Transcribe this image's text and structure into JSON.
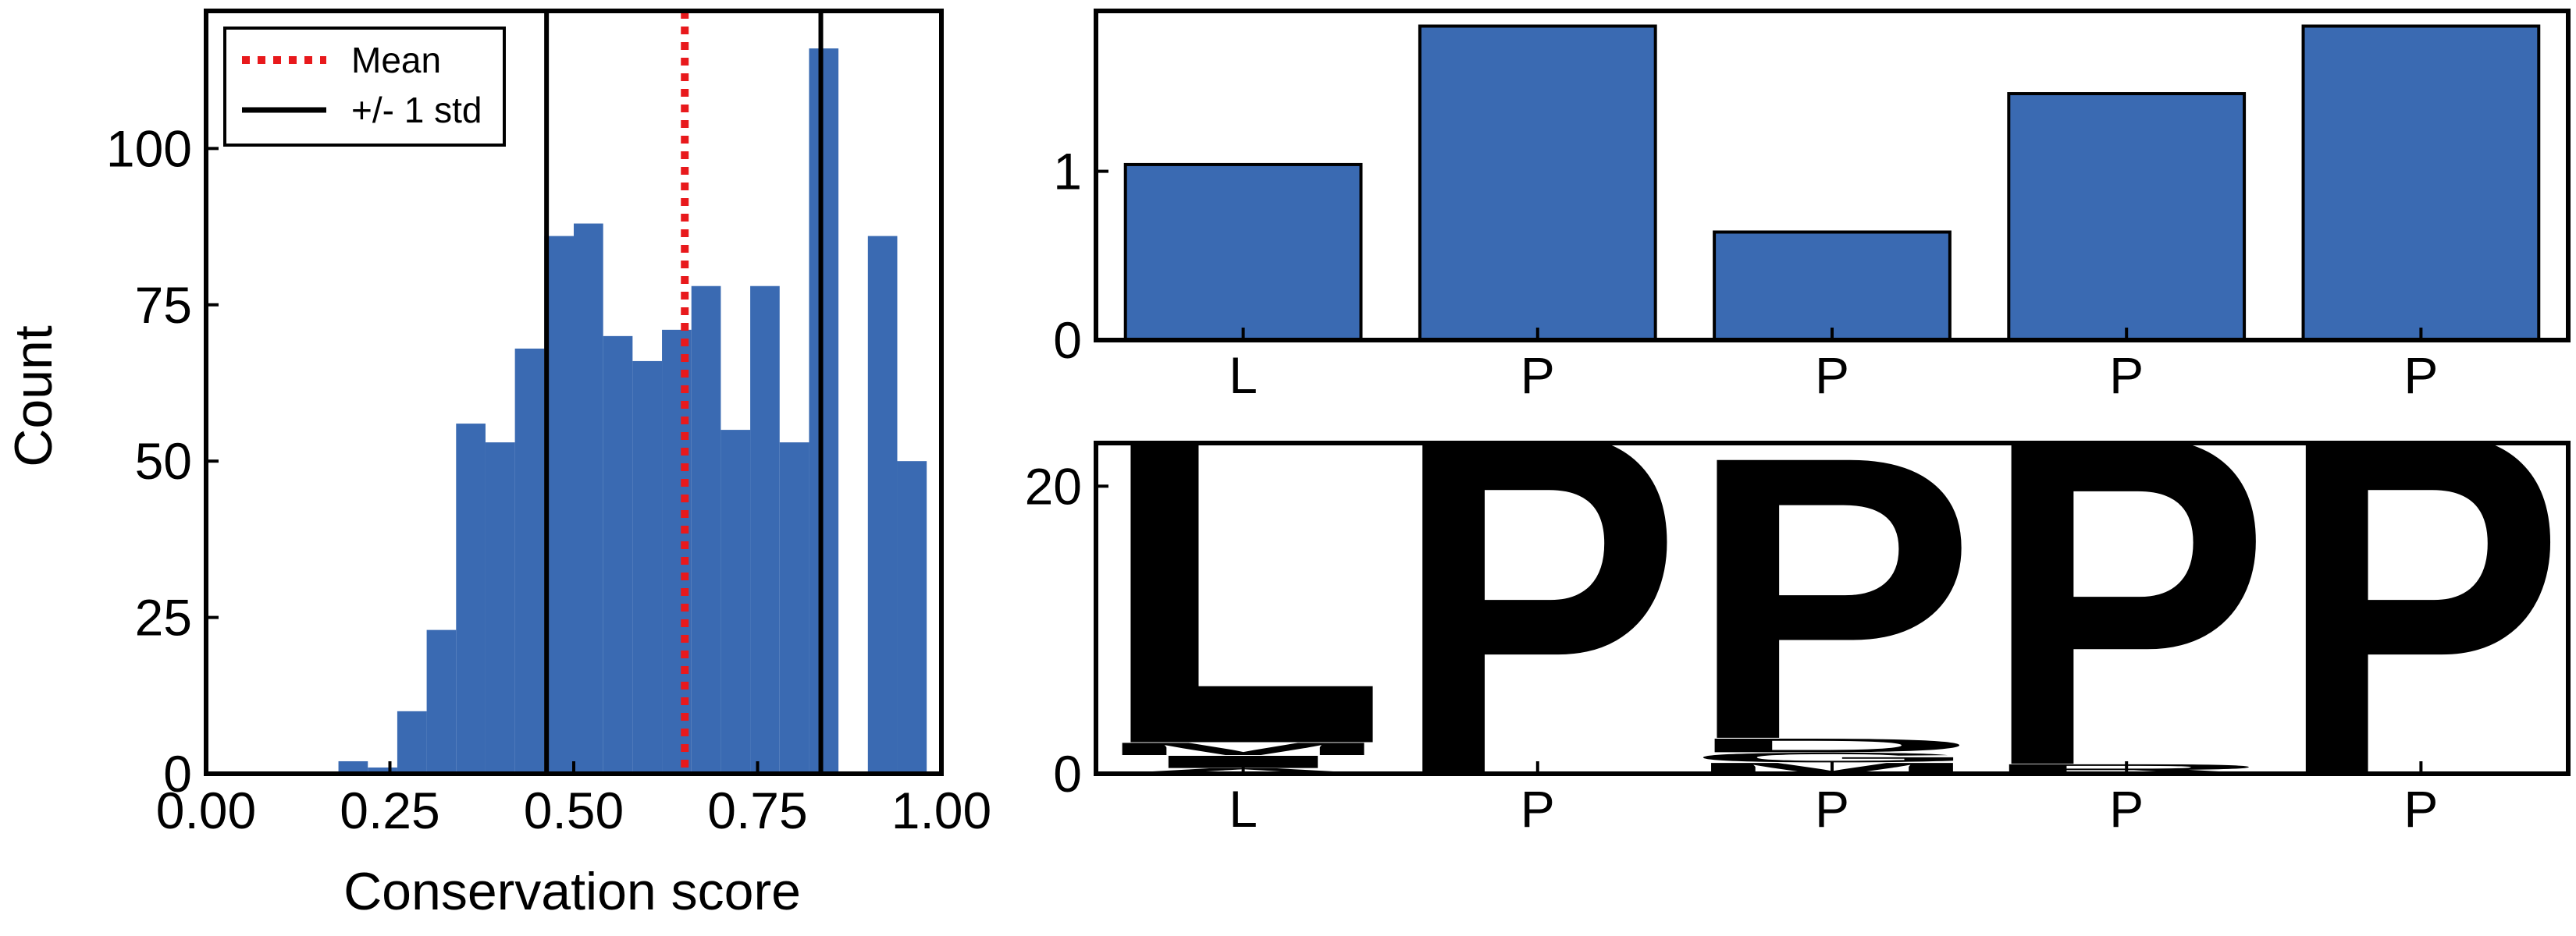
{
  "colors": {
    "bar": "#3a6ab2",
    "mean_line": "#e8191c",
    "std_line": "#000000",
    "axis": "#000000",
    "logo_red": "#e8191c",
    "logo_green": "#1a9a1a",
    "logo_blue": "#1a1ae8",
    "logo_black": "#000000"
  },
  "chart_data": [
    {
      "type": "bar",
      "subtype": "histogram",
      "xlabel": "Conservation score",
      "ylabel": "Count",
      "xlim": [
        0.0,
        1.0
      ],
      "ylim": [
        0,
        122
      ],
      "xticks": [
        0.0,
        0.25,
        0.5,
        0.75,
        1.0
      ],
      "xtick_labels": [
        "0.00",
        "0.25",
        "0.50",
        "0.75",
        "1.00"
      ],
      "yticks": [
        0,
        25,
        50,
        75,
        100
      ],
      "ytick_labels": [
        "0",
        "25",
        "50",
        "75",
        "100"
      ],
      "bin_width": 0.04,
      "bins": [
        {
          "x0": 0.18,
          "count": 2
        },
        {
          "x0": 0.22,
          "count": 1
        },
        {
          "x0": 0.26,
          "count": 10
        },
        {
          "x0": 0.3,
          "count": 23
        },
        {
          "x0": 0.34,
          "count": 56
        },
        {
          "x0": 0.38,
          "count": 53
        },
        {
          "x0": 0.42,
          "count": 68
        },
        {
          "x0": 0.46,
          "count": 86
        },
        {
          "x0": 0.5,
          "count": 88
        },
        {
          "x0": 0.54,
          "count": 70
        },
        {
          "x0": 0.58,
          "count": 66
        },
        {
          "x0": 0.62,
          "count": 71
        },
        {
          "x0": 0.66,
          "count": 78
        },
        {
          "x0": 0.7,
          "count": 55
        },
        {
          "x0": 0.74,
          "count": 78
        },
        {
          "x0": 0.78,
          "count": 53
        },
        {
          "x0": 0.82,
          "count": 116
        },
        {
          "x0": 0.86,
          "count": 0
        },
        {
          "x0": 0.9,
          "count": 86
        },
        {
          "x0": 0.94,
          "count": 50
        }
      ],
      "vlines": [
        {
          "name": "Mean",
          "x": 0.651,
          "style": "dotted",
          "color_key": "mean_line"
        },
        {
          "name": "+/- 1 std",
          "x": 0.463,
          "style": "solid",
          "color_key": "std_line"
        },
        {
          "name": "+/- 1 std",
          "x": 0.836,
          "style": "solid",
          "color_key": "std_line"
        }
      ],
      "legend": {
        "placement": "top-left",
        "entries": [
          "Mean",
          "+/- 1 std"
        ]
      },
      "grid": false
    },
    {
      "type": "bar",
      "categories": [
        "L",
        "P",
        "P",
        "P",
        "P"
      ],
      "values": [
        1.04,
        1.86,
        0.64,
        1.46,
        1.86
      ],
      "ylim": [
        0,
        1.95
      ],
      "yticks": [
        0,
        1
      ],
      "ytick_labels": [
        "0",
        "1"
      ],
      "grid": false
    },
    {
      "type": "sequence-logo",
      "categories": [
        "L",
        "P",
        "P",
        "P",
        "P"
      ],
      "ylim": [
        0,
        23
      ],
      "yticks": [
        0,
        20
      ],
      "ytick_labels": [
        "0",
        "20"
      ],
      "positions": [
        {
          "consensus": "L",
          "stack": [
            {
              "letter": "A",
              "height": 0.4,
              "color_key": "logo_black"
            },
            {
              "letter": "I",
              "height": 0.9,
              "color_key": "logo_black"
            },
            {
              "letter": "M",
              "height": 0.9,
              "color_key": "logo_black"
            },
            {
              "letter": "L",
              "height": 25.5,
              "color_key": "logo_black"
            }
          ]
        },
        {
          "consensus": "P",
          "stack": [
            {
              "letter": "P",
              "height": 25.0,
              "color_key": "logo_black"
            }
          ]
        },
        {
          "consensus": "P",
          "stack": [
            {
              "letter": "M",
              "height": 0.8,
              "color_key": "logo_black"
            },
            {
              "letter": "G",
              "height": 0.7,
              "color_key": "logo_green"
            },
            {
              "letter": "D",
              "height": 1.0,
              "color_key": "logo_red"
            },
            {
              "letter": "P",
              "height": 20.5,
              "color_key": "logo_black"
            }
          ]
        },
        {
          "consensus": "P",
          "stack": [
            {
              "letter": "R",
              "height": 0.7,
              "color_key": "logo_blue"
            },
            {
              "letter": "P",
              "height": 24.0,
              "color_key": "logo_black"
            }
          ]
        },
        {
          "consensus": "P",
          "stack": [
            {
              "letter": "P",
              "height": 25.0,
              "color_key": "logo_black"
            }
          ]
        }
      ],
      "grid": false
    }
  ]
}
